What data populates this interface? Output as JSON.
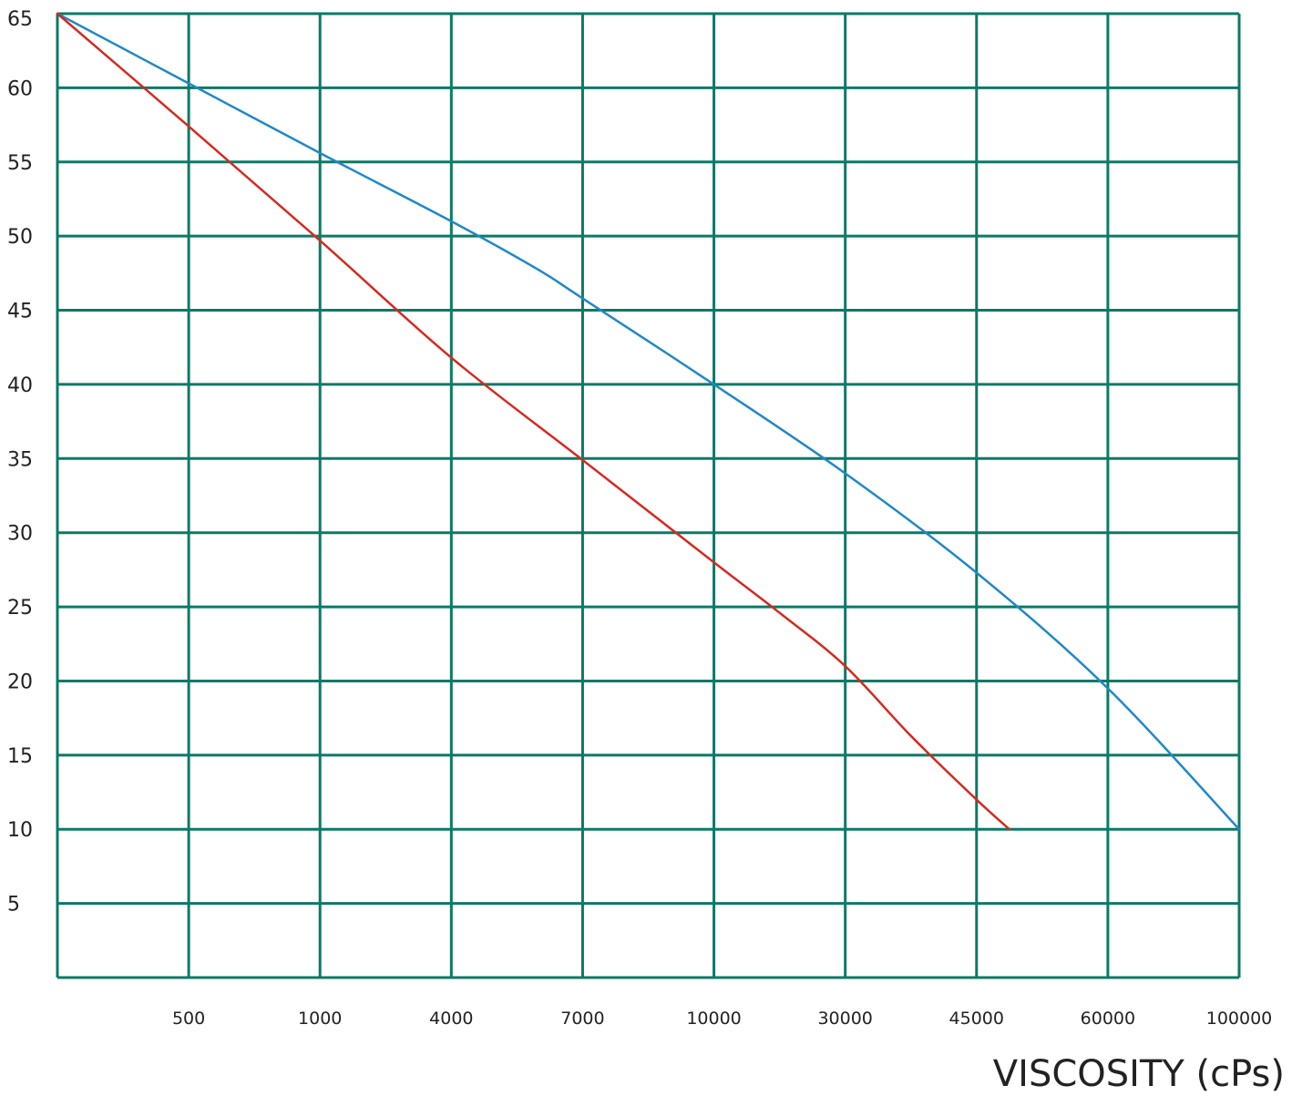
{
  "chart_data": {
    "type": "line",
    "xlabel": "VISCOSITY (cPs)",
    "ylabel": "",
    "x_scale": "categorical-grid",
    "x_ticks": [
      "",
      "500",
      "1000",
      "4000",
      "7000",
      "10000",
      "30000",
      "45000",
      "60000",
      "100000"
    ],
    "y_ticks": [
      "",
      "5",
      "10",
      "15",
      "20",
      "25",
      "30",
      "35",
      "40",
      "45",
      "50",
      "55",
      "60",
      "65"
    ],
    "ylim": [
      0,
      65
    ],
    "grid": true,
    "colors": {
      "grid": "#0b7a66",
      "axis_text": "#222222"
    },
    "series": [
      {
        "color": "#1f88c8",
        "points": [
          {
            "x": 0,
            "y": 65
          },
          {
            "x": 1,
            "y": 60.3
          },
          {
            "x": 2,
            "y": 55.6
          },
          {
            "x": 3,
            "y": 51
          },
          {
            "x": 3.65,
            "y": 47.8
          },
          {
            "x": 4,
            "y": 45.8
          },
          {
            "x": 5,
            "y": 40
          },
          {
            "x": 6,
            "y": 34
          },
          {
            "x": 7,
            "y": 27.3
          },
          {
            "x": 8,
            "y": 19.5
          },
          {
            "x": 9,
            "y": 10
          }
        ]
      },
      {
        "color": "#d42a20",
        "points": [
          {
            "x": 0,
            "y": 65
          },
          {
            "x": 1,
            "y": 57.4
          },
          {
            "x": 2,
            "y": 49.7
          },
          {
            "x": 3,
            "y": 41.8
          },
          {
            "x": 4,
            "y": 34.9
          },
          {
            "x": 5,
            "y": 28
          },
          {
            "x": 5.5,
            "y": 24.6
          },
          {
            "x": 6,
            "y": 21
          },
          {
            "x": 6.5,
            "y": 16.3
          },
          {
            "x": 7,
            "y": 12
          },
          {
            "x": 7.25,
            "y": 10
          }
        ]
      }
    ]
  }
}
